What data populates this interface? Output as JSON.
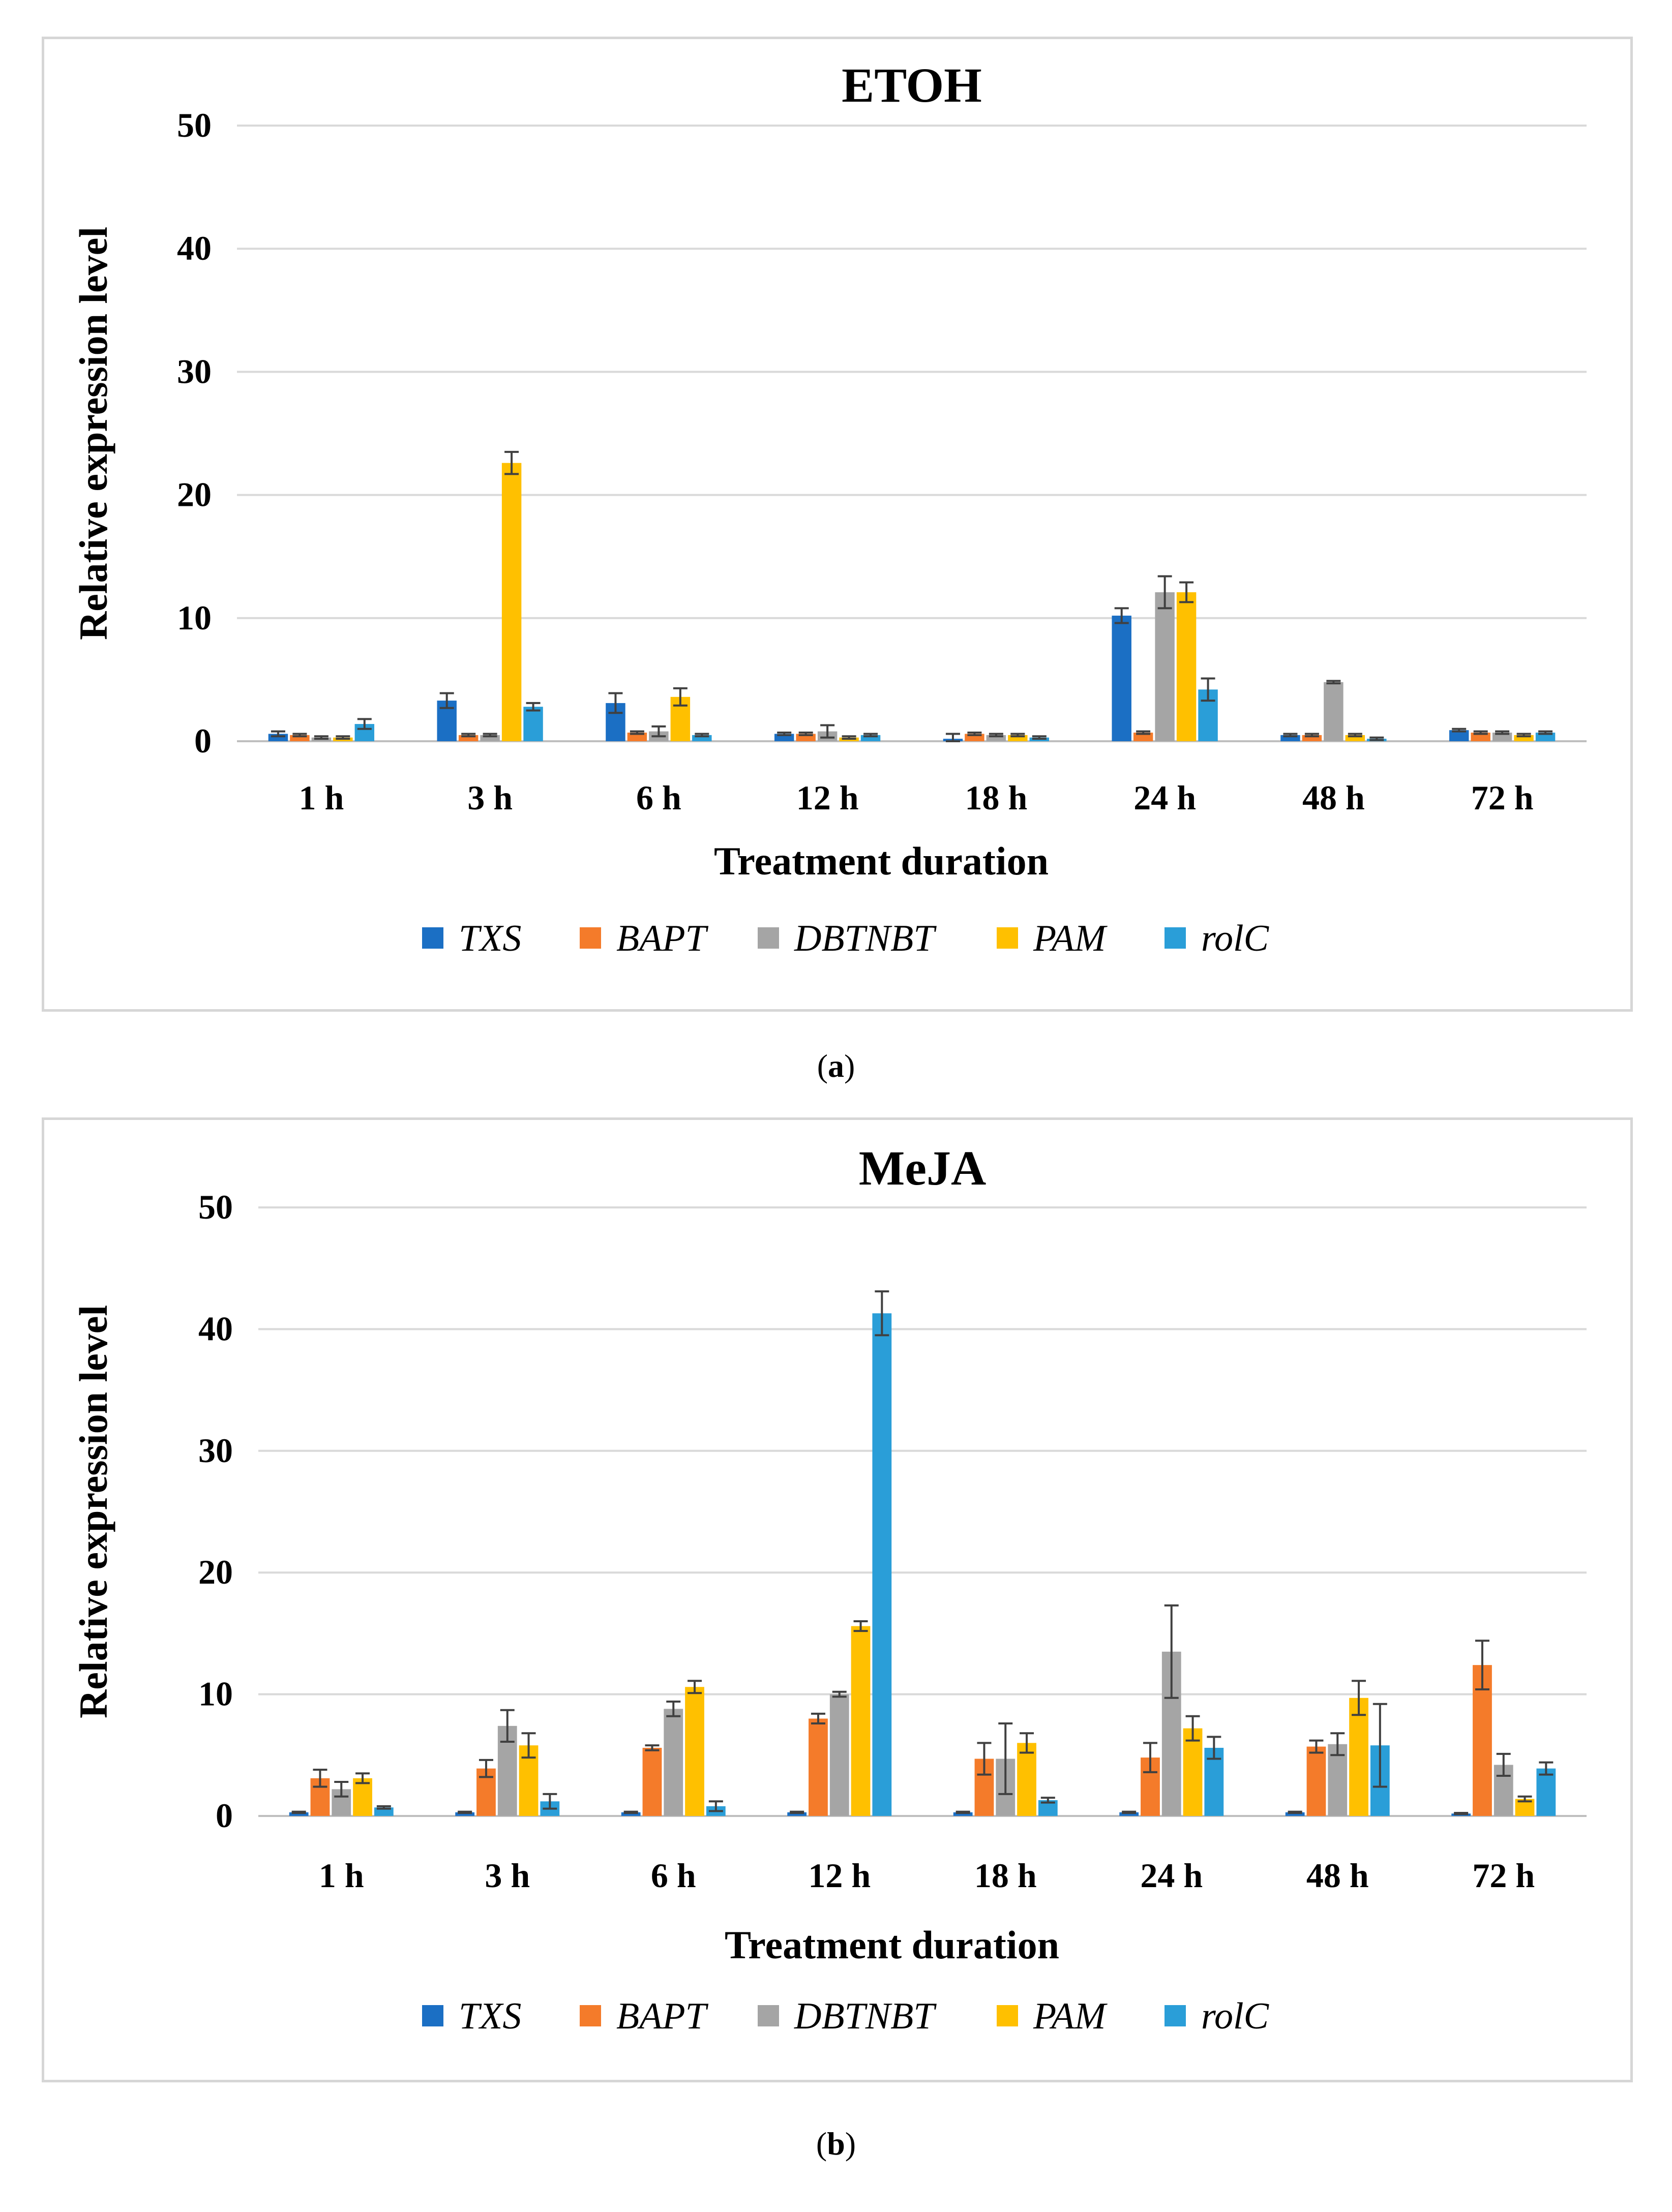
{
  "colors": {
    "TXS": "#1b6fc4",
    "BAPT": "#f47b2a",
    "DBTNBT": "#a5a5a5",
    "PAM": "#ffc000",
    "rolC": "#2a9ed8",
    "grid": "#d9d9d9",
    "errorbar": "#404040"
  },
  "captions": {
    "a": "a",
    "b": "b"
  },
  "chart_data": [
    {
      "type": "bar",
      "title": "ETOH",
      "xlabel": "Treatment duration",
      "ylabel": "Relative  expression level",
      "ylim": [
        0,
        50
      ],
      "yticks": [
        "0",
        "10",
        "20",
        "30",
        "40",
        "50"
      ],
      "grid": true,
      "legend_position": "bottom",
      "categories": [
        "1 h",
        "3 h",
        "6 h",
        "12 h",
        "18 h",
        "24 h",
        "48 h",
        "72 h"
      ],
      "series": [
        {
          "name": "TXS",
          "values": [
            0.6,
            3.3,
            3.1,
            0.6,
            0.2,
            10.2,
            0.5,
            0.9
          ],
          "errors": [
            0.2,
            0.6,
            0.8,
            0.1,
            0.4,
            0.6,
            0.1,
            0.1
          ]
        },
        {
          "name": "BAPT",
          "values": [
            0.5,
            0.5,
            0.7,
            0.6,
            0.6,
            0.7,
            0.5,
            0.7
          ],
          "errors": [
            0.1,
            0.1,
            0.1,
            0.1,
            0.1,
            0.1,
            0.1,
            0.1
          ]
        },
        {
          "name": "DBTNBT",
          "values": [
            0.3,
            0.5,
            0.8,
            0.8,
            0.5,
            12.1,
            4.8,
            0.7
          ],
          "errors": [
            0.1,
            0.1,
            0.4,
            0.5,
            0.1,
            1.3,
            0.1,
            0.1
          ]
        },
        {
          "name": "PAM",
          "values": [
            0.3,
            22.6,
            3.6,
            0.3,
            0.5,
            12.1,
            0.5,
            0.5
          ],
          "errors": [
            0.1,
            0.9,
            0.7,
            0.1,
            0.1,
            0.8,
            0.1,
            0.1
          ]
        },
        {
          "name": "rolC",
          "values": [
            1.4,
            2.8,
            0.5,
            0.5,
            0.3,
            4.2,
            0.2,
            0.7
          ],
          "errors": [
            0.4,
            0.3,
            0.1,
            0.1,
            0.1,
            0.9,
            0.1,
            0.1
          ]
        }
      ]
    },
    {
      "type": "bar",
      "title": "MeJA",
      "xlabel": "Treatment duration",
      "ylabel": "Relative  expression level",
      "ylim": [
        0,
        50
      ],
      "yticks": [
        "0",
        "10",
        "20",
        "30",
        "40",
        "50"
      ],
      "grid": true,
      "legend_position": "bottom",
      "categories": [
        "1 h",
        "3 h",
        "6 h",
        "12 h",
        "18 h",
        "24 h",
        "48 h",
        "72 h"
      ],
      "series": [
        {
          "name": "TXS",
          "values": [
            0.3,
            0.3,
            0.3,
            0.3,
            0.3,
            0.3,
            0.3,
            0.2
          ],
          "errors": [
            0.05,
            0.05,
            0.05,
            0.05,
            0.05,
            0.05,
            0.05,
            0.05
          ]
        },
        {
          "name": "BAPT",
          "values": [
            3.1,
            3.9,
            5.6,
            8.0,
            4.7,
            4.8,
            5.7,
            12.4
          ],
          "errors": [
            0.7,
            0.7,
            0.2,
            0.4,
            1.3,
            1.2,
            0.5,
            2.0
          ]
        },
        {
          "name": "DBTNBT",
          "values": [
            2.2,
            7.4,
            8.8,
            10.0,
            4.7,
            13.5,
            5.9,
            4.2
          ],
          "errors": [
            0.6,
            1.3,
            0.6,
            0.2,
            2.9,
            3.8,
            0.9,
            0.9
          ]
        },
        {
          "name": "PAM",
          "values": [
            3.1,
            5.8,
            10.6,
            15.6,
            6.0,
            7.2,
            9.7,
            1.4
          ],
          "errors": [
            0.4,
            1.0,
            0.5,
            0.4,
            0.8,
            1.0,
            1.4,
            0.2
          ]
        },
        {
          "name": "rolC",
          "values": [
            0.7,
            1.2,
            0.8,
            41.3,
            1.3,
            5.6,
            5.8,
            3.9
          ],
          "errors": [
            0.1,
            0.6,
            0.4,
            1.8,
            0.2,
            0.9,
            3.4,
            0.5
          ]
        }
      ]
    }
  ]
}
